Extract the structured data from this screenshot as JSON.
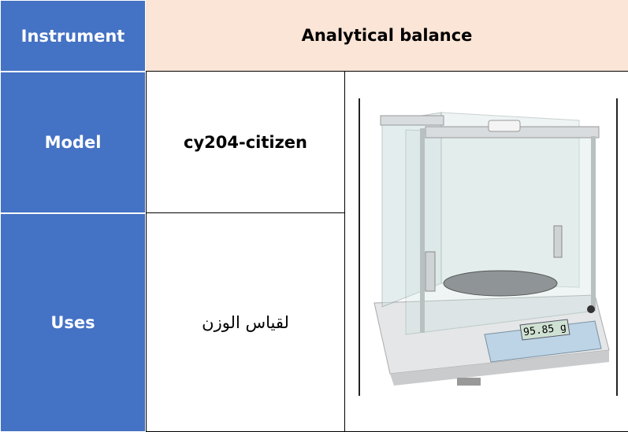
{
  "table": {
    "header": [
      "Instrument",
      "Analytical balance"
    ],
    "rows": [
      [
        "Model",
        "cy204-citizen"
      ],
      [
        "Uses",
        "لقياس الوزن"
      ]
    ]
  },
  "image": {
    "display": "95.85 g"
  }
}
